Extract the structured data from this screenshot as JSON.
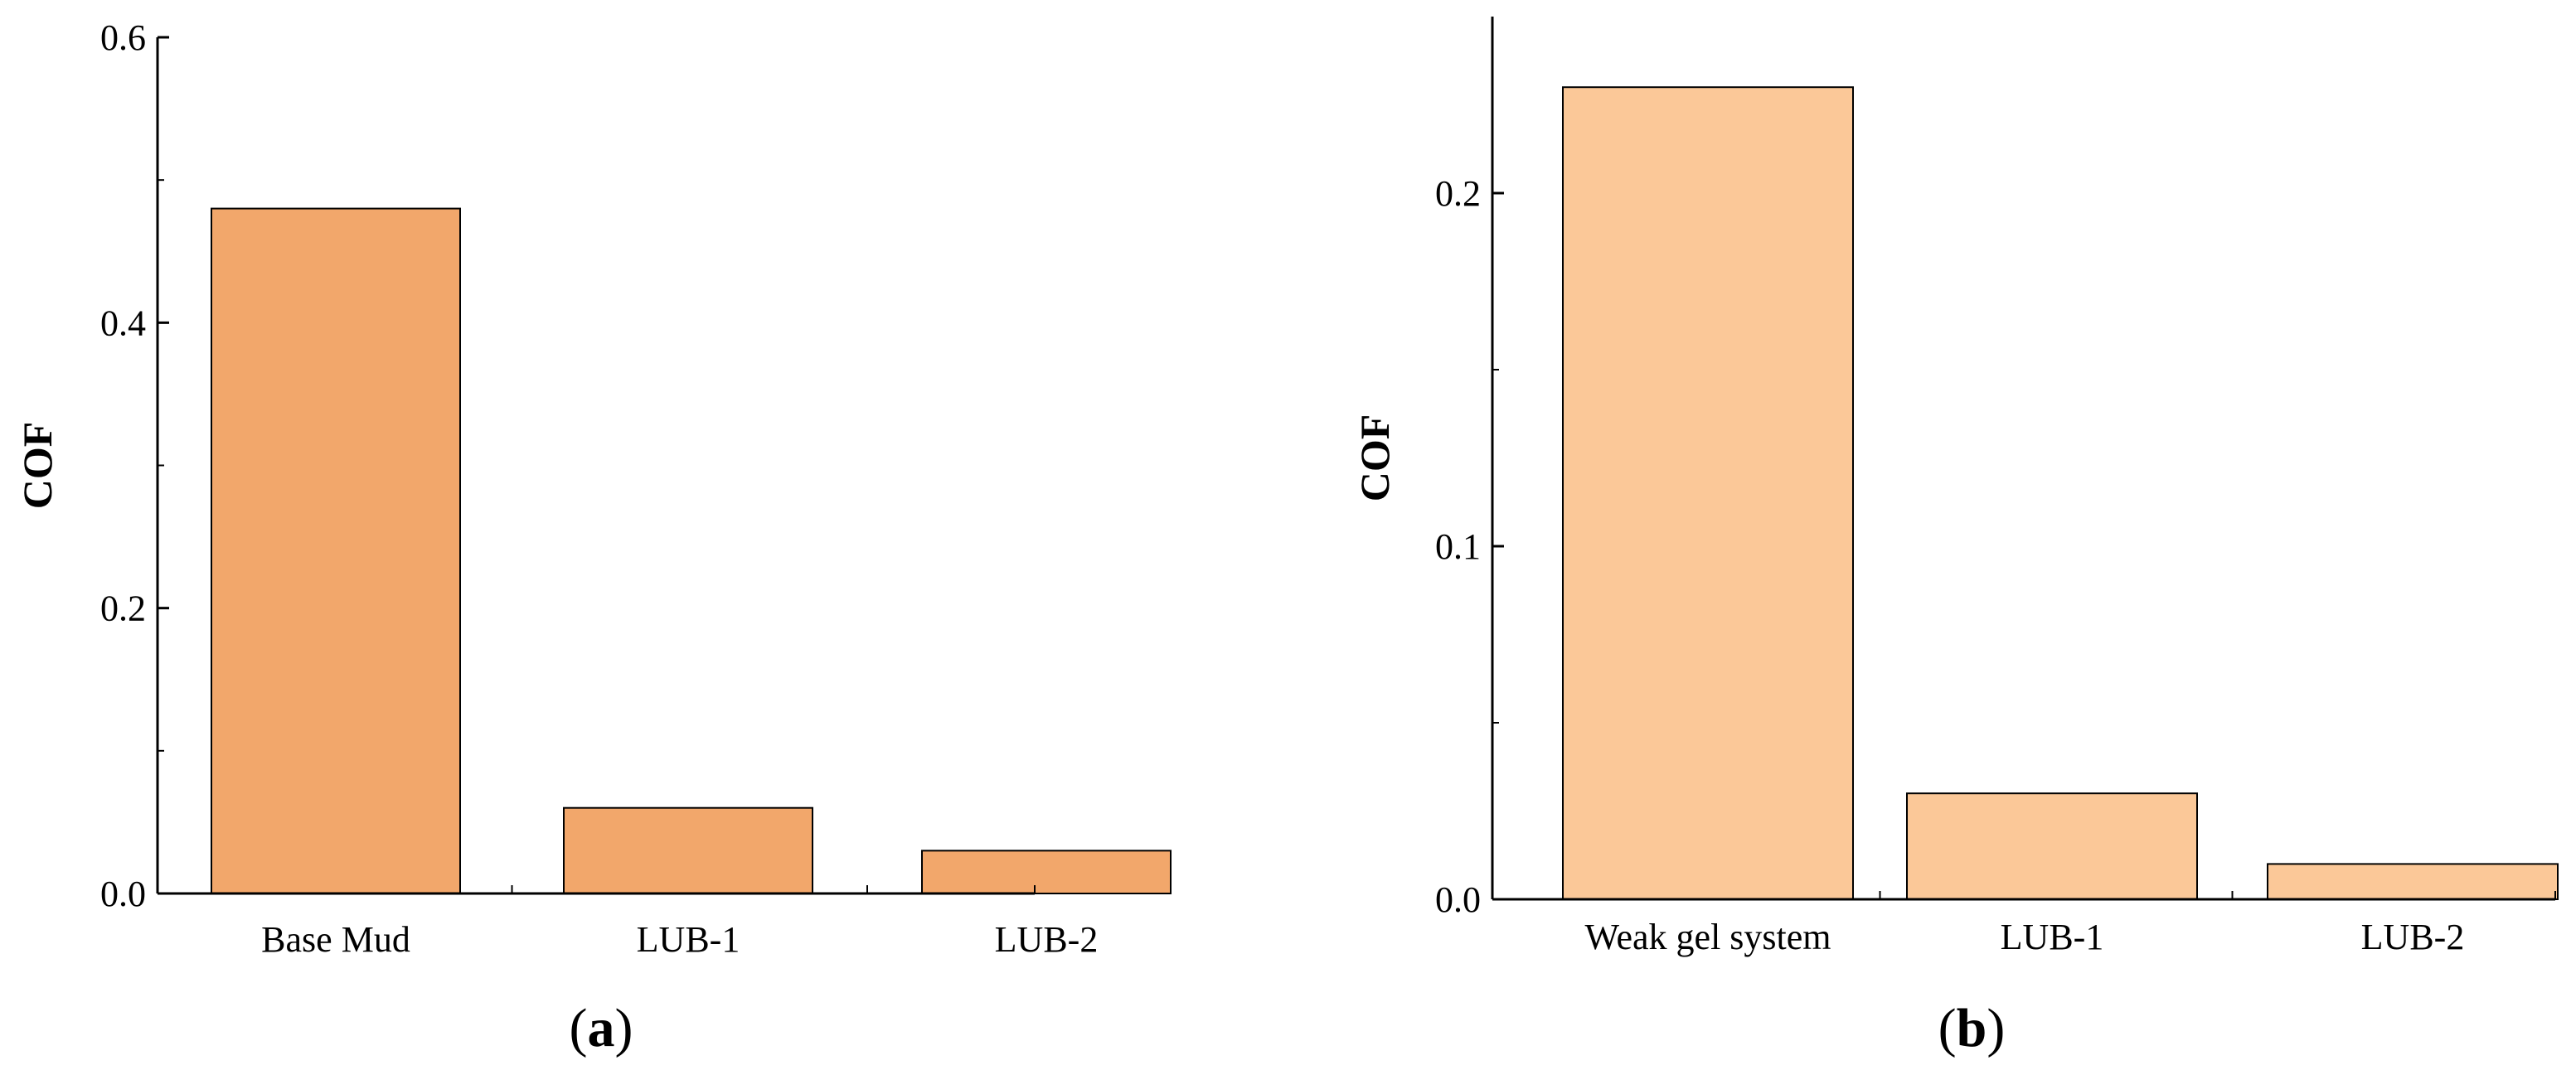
{
  "chart_data": [
    {
      "type": "bar",
      "panel": "a",
      "categories": [
        "Base Mud",
        "LUB-1",
        "LUB-2"
      ],
      "values": [
        0.48,
        0.06,
        0.03
      ],
      "ylabel": "COF",
      "xlabel": "",
      "ylim": [
        0,
        0.6
      ],
      "yticks": [
        0.0,
        0.2,
        0.4,
        0.6
      ],
      "ytick_labels": [
        "0.0",
        "0.2",
        "0.4",
        "0.6"
      ],
      "bar_color": "#f2a76b",
      "panel_label": {
        "open": "(",
        "letter": "a",
        "close": ")"
      }
    },
    {
      "type": "bar",
      "panel": "b",
      "categories": [
        "Weak gel system",
        "LUB-1",
        "LUB-2"
      ],
      "values": [
        0.23,
        0.03,
        0.01
      ],
      "ylabel": "COF",
      "xlabel": "",
      "ylim": [
        0,
        0.25
      ],
      "yticks": [
        0.0,
        0.1,
        0.2
      ],
      "ytick_labels": [
        "0.0",
        "0.1",
        "0.2"
      ],
      "bar_color": "#fbc898",
      "panel_label": {
        "open": "(",
        "letter": "b",
        "close": ")"
      }
    }
  ]
}
